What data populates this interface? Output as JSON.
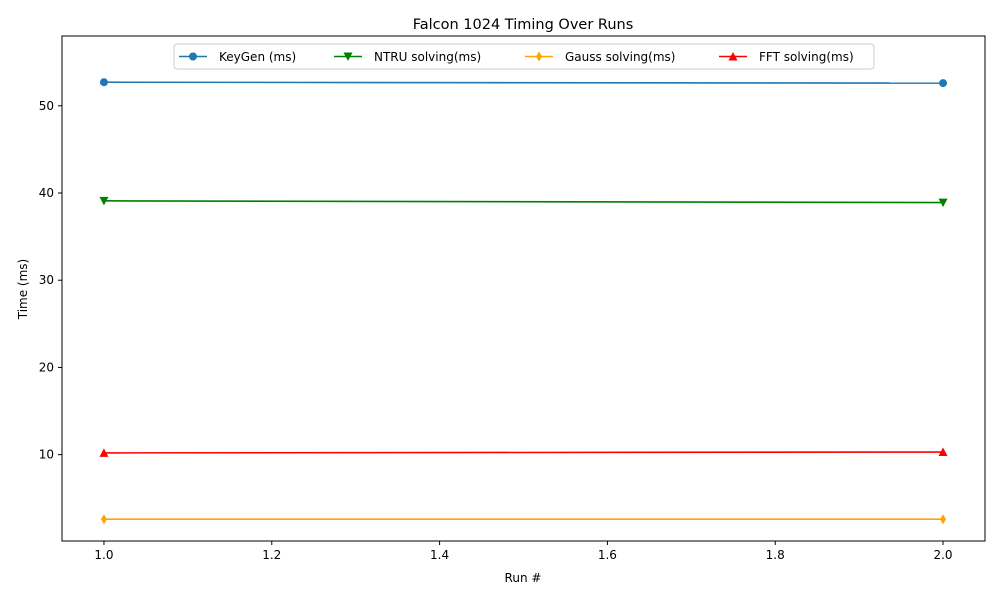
{
  "chart_data": {
    "type": "line",
    "title": "Falcon 1024 Timing Over Runs",
    "xlabel": "Run #",
    "ylabel": "Time (ms)",
    "xlim": [
      0.95,
      2.05
    ],
    "ylim": [
      0.1,
      58.0
    ],
    "x_ticks": [
      1.0,
      1.2,
      1.4,
      1.6,
      1.8,
      2.0
    ],
    "x_tick_labels": [
      "1.0",
      "1.2",
      "1.4",
      "1.6",
      "1.8",
      "2.0"
    ],
    "y_ticks": [
      10,
      20,
      30,
      40,
      50
    ],
    "y_tick_labels": [
      "10",
      "20",
      "30",
      "40",
      "50"
    ],
    "grid": false,
    "legend_position": "top-center",
    "x": [
      1.0,
      2.0
    ],
    "series": [
      {
        "name": "KeyGen (ms)",
        "values": [
          52.7,
          52.6
        ],
        "color": "#1f77b4",
        "marker": "circle"
      },
      {
        "name": "NTRU solving(ms)",
        "values": [
          39.1,
          38.9
        ],
        "color": "#008000",
        "marker": "triangle-down"
      },
      {
        "name": "Gauss solving(ms)",
        "values": [
          2.6,
          2.6
        ],
        "color": "#ffa500",
        "marker": "thin-diamond"
      },
      {
        "name": "FFT solving(ms)",
        "values": [
          10.2,
          10.3
        ],
        "color": "#ff0000",
        "marker": "triangle-up"
      }
    ]
  }
}
